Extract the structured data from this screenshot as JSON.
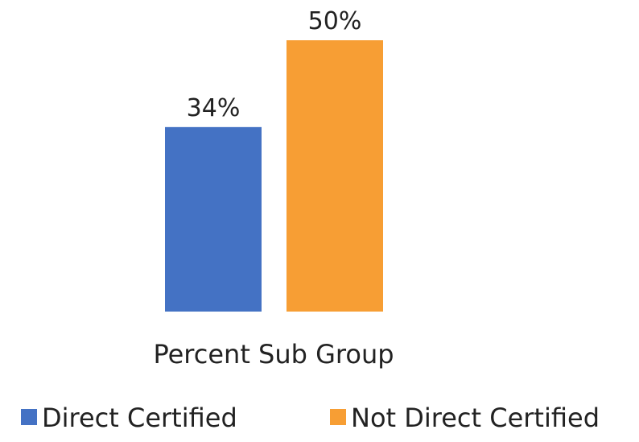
{
  "chart_data": {
    "type": "bar",
    "title": "",
    "xlabel": "",
    "ylabel": "",
    "categories": [
      "Percent Sub Group"
    ],
    "ylim": [
      0,
      50
    ],
    "grid": false,
    "legend_position": "bottom",
    "series": [
      {
        "name": "Direct Certified",
        "values": [
          34
        ],
        "labels": [
          "34%"
        ],
        "color": "#4472C4"
      },
      {
        "name": "Not Direct Certified",
        "values": [
          50
        ],
        "labels": [
          "50%"
        ],
        "color": "#F79E34"
      }
    ]
  }
}
